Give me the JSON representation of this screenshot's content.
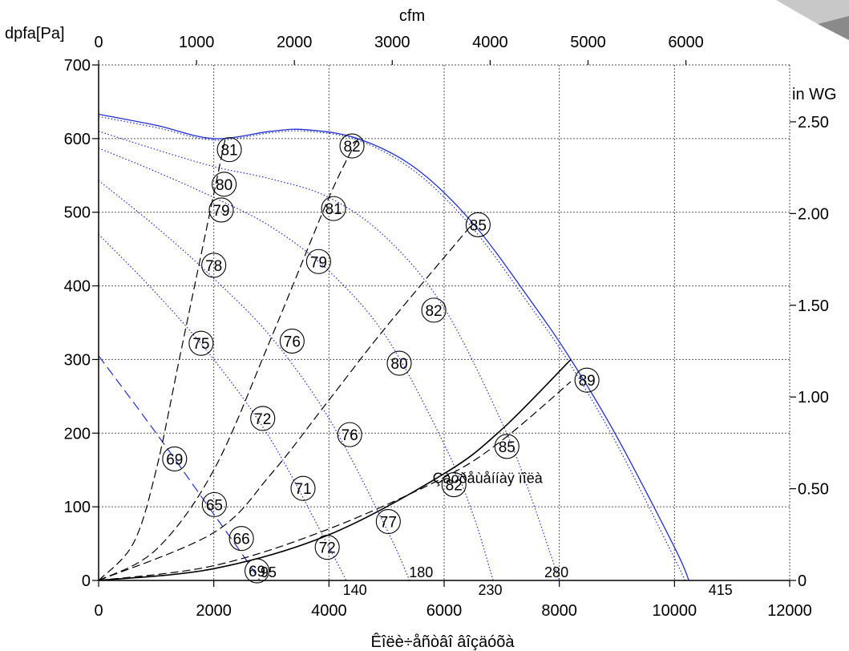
{
  "chart_data": {
    "type": "line",
    "xlabel": "Êîëè÷åñòâî âîçäóõà",
    "ylabel": "dpfa[Pa]",
    "x2label": "cfm",
    "y2label": "in WG",
    "xlim": [
      0,
      12000
    ],
    "ylim": [
      0,
      700
    ],
    "x2lim": [
      0,
      7060
    ],
    "y2lim": [
      0,
      2.81
    ],
    "grid": true,
    "xticks": [
      "0",
      "2000",
      "4000",
      "6000",
      "8000",
      "10000",
      "12000"
    ],
    "yticks": [
      "0",
      "100",
      "200",
      "300",
      "400",
      "500",
      "600",
      "700"
    ],
    "x2ticks": [
      "0",
      "1000",
      "2000",
      "3000",
      "4000",
      "5000",
      "6000"
    ],
    "y2ticks": [
      "0",
      "0.50",
      "1.00",
      "1.50",
      "2.00",
      "2.50"
    ],
    "rpm_labels": [
      {
        "text": "415",
        "x": 10800,
        "y": -12
      },
      {
        "text": "280",
        "x": 7950,
        "y": 12
      },
      {
        "text": "230",
        "x": 6800,
        "y": -12
      },
      {
        "text": "180",
        "x": 5600,
        "y": 12
      },
      {
        "text": "140",
        "x": 4450,
        "y": -12
      },
      {
        "text": "95",
        "x": 2950,
        "y": 12
      }
    ],
    "efficiency_labels": [
      {
        "text": "81",
        "x": 2270,
        "y": 585
      },
      {
        "text": "82",
        "x": 4400,
        "y": 590
      },
      {
        "text": "80",
        "x": 2180,
        "y": 538
      },
      {
        "text": "79",
        "x": 2130,
        "y": 503
      },
      {
        "text": "81",
        "x": 4080,
        "y": 505
      },
      {
        "text": "85",
        "x": 6590,
        "y": 483
      },
      {
        "text": "78",
        "x": 2000,
        "y": 428
      },
      {
        "text": "79",
        "x": 3820,
        "y": 433
      },
      {
        "text": "82",
        "x": 5820,
        "y": 367
      },
      {
        "text": "75",
        "x": 1780,
        "y": 322
      },
      {
        "text": "76",
        "x": 3360,
        "y": 325
      },
      {
        "text": "80",
        "x": 5220,
        "y": 295
      },
      {
        "text": "89",
        "x": 8480,
        "y": 272
      },
      {
        "text": "72",
        "x": 2850,
        "y": 220
      },
      {
        "text": "76",
        "x": 4360,
        "y": 198
      },
      {
        "text": "85",
        "x": 7090,
        "y": 182
      },
      {
        "text": "69",
        "x": 1320,
        "y": 165
      },
      {
        "text": "82",
        "x": 6170,
        "y": 130
      },
      {
        "text": "71",
        "x": 3550,
        "y": 125
      },
      {
        "text": "65",
        "x": 2010,
        "y": 103
      },
      {
        "text": "77",
        "x": 5030,
        "y": 80
      },
      {
        "text": "66",
        "x": 2480,
        "y": 57
      },
      {
        "text": "72",
        "x": 3970,
        "y": 45
      },
      {
        "text": "69",
        "x": 2750,
        "y": 13
      }
    ],
    "annotations": [
      {
        "text": "Çàòðåùåííàÿ ïîëà",
        "x": 5800,
        "y": 140
      }
    ],
    "series": [
      {
        "style": "solid-blue",
        "x": [
          0,
          1000,
          2000,
          3000,
          3600,
          4500,
          5500,
          6500,
          7500,
          8200,
          9000,
          10000,
          10250
        ],
        "y": [
          633,
          618,
          600,
          610,
          612,
          600,
          560,
          485,
          380,
          300,
          195,
          45,
          0
        ]
      },
      {
        "style": "dotted-blue",
        "x": [
          0,
          1000,
          2000,
          3000,
          3600,
          4500,
          5500,
          6500,
          7500,
          8200,
          9000,
          10000,
          10180
        ],
        "y": [
          630,
          615,
          598,
          608,
          610,
          598,
          555,
          478,
          372,
          292,
          185,
          30,
          0
        ]
      },
      {
        "style": "dotted-blue",
        "x": [
          0,
          1000,
          2000,
          3000,
          4000,
          5000,
          6000,
          7000,
          7500,
          8000
        ],
        "y": [
          610,
          585,
          562,
          545,
          520,
          465,
          370,
          215,
          115,
          0
        ]
      },
      {
        "style": "dotted-blue",
        "x": [
          0,
          1000,
          2000,
          3000,
          4000,
          5000,
          6000,
          6500,
          6850
        ],
        "y": [
          587,
          555,
          520,
          480,
          420,
          330,
          185,
          90,
          0
        ]
      },
      {
        "style": "dotted-blue",
        "x": [
          0,
          1000,
          2000,
          3000,
          4000,
          5000,
          5400
        ],
        "y": [
          543,
          480,
          410,
          330,
          220,
          70,
          0
        ]
      },
      {
        "style": "dotted-blue",
        "x": [
          0,
          1000,
          2000,
          3000,
          4000,
          4300
        ],
        "y": [
          470,
          390,
          300,
          190,
          45,
          0
        ]
      },
      {
        "style": "dashed-blue",
        "x": [
          0,
          1000,
          2000,
          2500,
          2800
        ],
        "y": [
          305,
          200,
          90,
          35,
          0
        ]
      },
      {
        "style": "solid-black",
        "x": [
          0,
          2000,
          4000,
          6000,
          7000,
          8200
        ],
        "y": [
          0,
          16,
          62,
          145,
          205,
          300
        ]
      },
      {
        "style": "dashed-black",
        "x": [
          0,
          2000,
          4000,
          6000,
          7000,
          8200
        ],
        "y": [
          0,
          20,
          70,
          140,
          190,
          270
        ]
      },
      {
        "style": "dashed-black",
        "x": [
          0,
          600,
          1000,
          1400,
          1800,
          2200
        ],
        "y": [
          0,
          50,
          150,
          300,
          450,
          600
        ]
      },
      {
        "style": "dashed-black",
        "x": [
          0,
          1000,
          2000,
          3000,
          4000,
          4500
        ],
        "y": [
          0,
          42,
          150,
          330,
          520,
          600
        ]
      },
      {
        "style": "dashed-black",
        "x": [
          0,
          2000,
          3000,
          4000,
          5000,
          6500
        ],
        "y": [
          0,
          65,
          145,
          245,
          345,
          485
        ]
      }
    ]
  }
}
